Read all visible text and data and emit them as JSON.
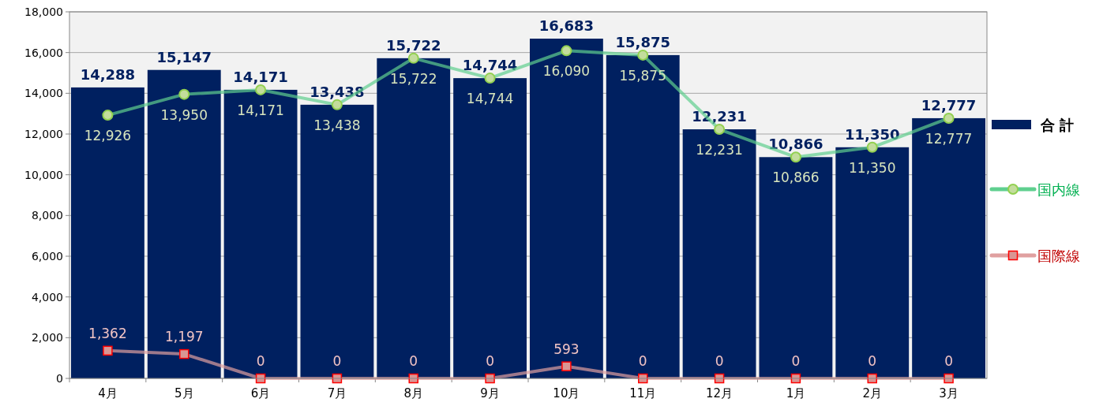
{
  "chart_data": {
    "type": "bar",
    "categories": [
      "4月",
      "5月",
      "6月",
      "7月",
      "8月",
      "9月",
      "10月",
      "11月",
      "12月",
      "1月",
      "2月",
      "3月"
    ],
    "series": [
      {
        "name": "合 計",
        "color": "#002060",
        "values": [
          14288,
          15147,
          14171,
          13438,
          15722,
          14744,
          16683,
          15875,
          12231,
          10866,
          11350,
          12777
        ],
        "value_labels": [
          "14,288",
          "15,147",
          "14,171",
          "13,438",
          "15,722",
          "14,744",
          "16,683",
          "15,875",
          "12,231",
          "10,866",
          "11,350",
          "12,777"
        ]
      },
      {
        "name": "国内線",
        "type": "line",
        "color": "#5fcf8f",
        "marker": "circle",
        "values": [
          12926,
          13950,
          14171,
          13438,
          15722,
          14744,
          16090,
          15875,
          12231,
          10866,
          11350,
          12777
        ],
        "value_labels": [
          "12,926",
          "13,950",
          "14,171",
          "13,438",
          "15,722",
          "14,744",
          "16,090",
          "15,875",
          "12,231",
          "10,866",
          "11,350",
          "12,777"
        ]
      },
      {
        "name": "国際線",
        "type": "line",
        "color": "#e0a0a0",
        "marker": "square",
        "values": [
          1362,
          1197,
          0,
          0,
          0,
          0,
          593,
          0,
          0,
          0,
          0,
          0
        ],
        "value_labels": [
          "1,362",
          "1,197",
          "0",
          "0",
          "0",
          "0",
          "593",
          "0",
          "0",
          "0",
          "0",
          "0"
        ]
      }
    ],
    "ylim": [
      0,
      18000
    ],
    "yticks": [
      0,
      {
        "value": 2000,
        "label": "2,000"
      },
      {
        "value": 4000,
        "label": "4,000"
      },
      {
        "value": 6000,
        "label": "6,000"
      },
      {
        "value": 8000,
        "label": "8,000"
      },
      {
        "value": 10000,
        "label": "10,000"
      },
      {
        "value": 12000,
        "label": "12,000"
      },
      {
        "value": 14000,
        "label": "14,000"
      },
      {
        "value": 16000,
        "label": "16,000"
      },
      {
        "value": 18000,
        "label": "18,000"
      }
    ],
    "grid": "y",
    "legend": "right",
    "line_style": "solid"
  }
}
